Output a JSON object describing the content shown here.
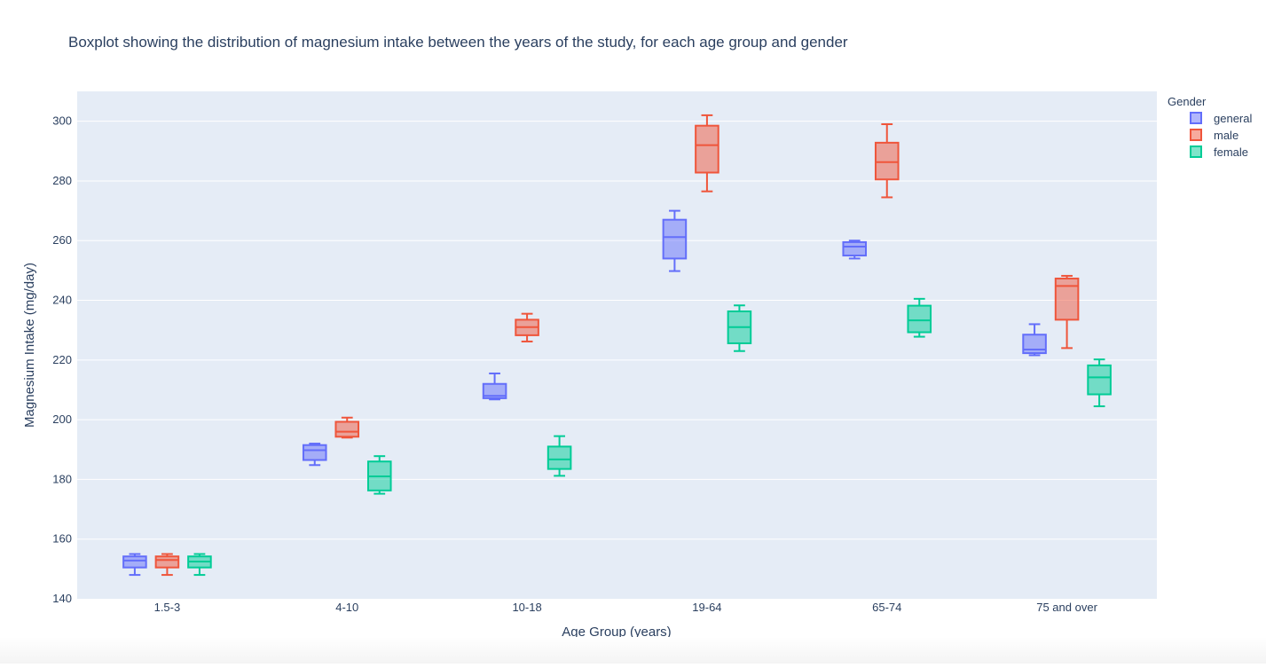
{
  "chart_data": {
    "type": "box",
    "title": "Boxplot showing the distribution of magnesium intake between the years of the study, for each age group and gender",
    "xlabel": "Age Group (years)",
    "ylabel": "Magnesium  Intake (mg/day)",
    "categories": [
      "1.5-3",
      "4-10",
      "10-18",
      "19-64",
      "65-74",
      "75 and over"
    ],
    "ylim": [
      140,
      310
    ],
    "yticks": [
      140,
      160,
      180,
      200,
      220,
      240,
      260,
      280,
      300
    ],
    "grid": true,
    "legend_title": "Gender",
    "legend_position": "top-right",
    "series": [
      {
        "name": "general",
        "color": "#636efa",
        "boxes": [
          {
            "min": 148,
            "q1": 150.5,
            "median": 152.8,
            "q3": 154.2,
            "max": 155
          },
          {
            "min": 184.8,
            "q1": 186.5,
            "median": 189.8,
            "q3": 191.5,
            "max": 192
          },
          {
            "min": 206.8,
            "q1": 207.2,
            "median": 208,
            "q3": 212,
            "max": 215.5
          },
          {
            "min": 249.8,
            "q1": 254,
            "median": 261.2,
            "q3": 267,
            "max": 270
          },
          {
            "min": 254,
            "q1": 255,
            "median": 258,
            "q3": 259.5,
            "max": 260
          },
          {
            "min": 221.6,
            "q1": 222.3,
            "median": 223.5,
            "q3": 228.5,
            "max": 232
          }
        ]
      },
      {
        "name": "male",
        "color": "#ef553b",
        "boxes": [
          {
            "min": 148,
            "q1": 150.5,
            "median": 153,
            "q3": 154.2,
            "max": 155
          },
          {
            "min": 194,
            "q1": 194.3,
            "median": 196,
            "q3": 199.3,
            "max": 200.7
          },
          {
            "min": 226.2,
            "q1": 228.3,
            "median": 231,
            "q3": 233.5,
            "max": 235.5
          },
          {
            "min": 276.5,
            "q1": 282.8,
            "median": 292,
            "q3": 298.5,
            "max": 302
          },
          {
            "min": 274.5,
            "q1": 280.5,
            "median": 286.3,
            "q3": 292.8,
            "max": 299
          },
          {
            "min": 224,
            "q1": 233.5,
            "median": 244.8,
            "q3": 247.3,
            "max": 248.2
          }
        ]
      },
      {
        "name": "female",
        "color": "#00cc96",
        "boxes": [
          {
            "min": 148,
            "q1": 150.5,
            "median": 152.5,
            "q3": 154.2,
            "max": 155
          },
          {
            "min": 175.2,
            "q1": 176.3,
            "median": 181,
            "q3": 186,
            "max": 187.8
          },
          {
            "min": 181.2,
            "q1": 183.5,
            "median": 186.7,
            "q3": 191,
            "max": 194.5
          },
          {
            "min": 223,
            "q1": 225.6,
            "median": 231,
            "q3": 236.3,
            "max": 238.3
          },
          {
            "min": 227.8,
            "q1": 229.3,
            "median": 233.3,
            "q3": 238.2,
            "max": 240.5
          },
          {
            "min": 204.5,
            "q1": 208.5,
            "median": 214.2,
            "q3": 218.2,
            "max": 220.2
          }
        ]
      }
    ]
  }
}
